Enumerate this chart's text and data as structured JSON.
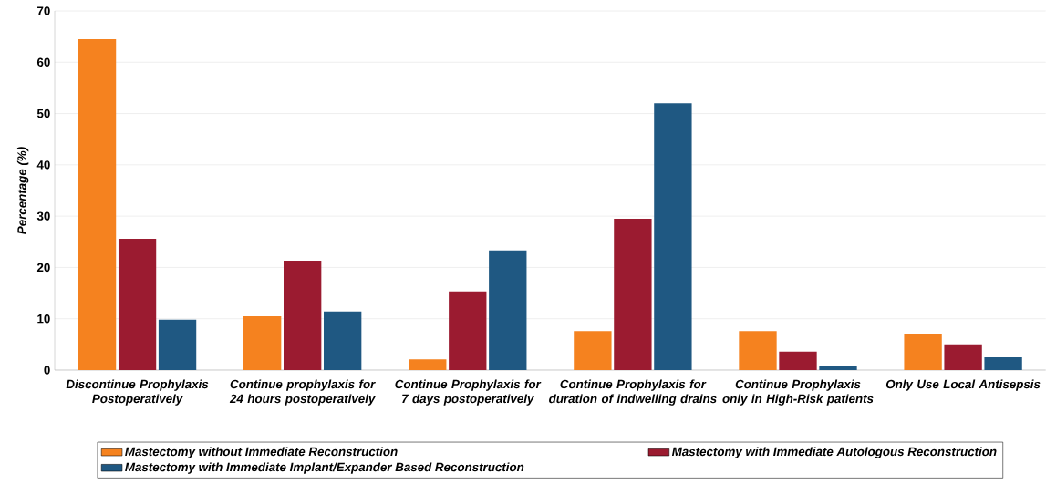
{
  "chart_data": {
    "type": "bar",
    "ylabel": "Percentage (%)",
    "categories": [
      "Discontinue Prophylaxis Postoperatively",
      "Continue prophylaxis for 24 hours postoperatively",
      "Continue Prophylaxis for 7 days postoperatively",
      "Continue Prophylaxis for duration of indwelling drains",
      "Continue Prophylaxis only in High-Risk patients",
      "Only Use Local Antisepsis"
    ],
    "series": [
      {
        "name": "Mastectomy without Immediate Reconstruction",
        "color": "#f5821f",
        "values": [
          64.5,
          10.5,
          2.1,
          7.6,
          7.6,
          7.1
        ]
      },
      {
        "name": "Mastectomy with Immediate Autologous Reconstruction",
        "color": "#9b1b30",
        "values": [
          25.6,
          21.3,
          15.3,
          29.5,
          3.6,
          5.0
        ]
      },
      {
        "name": "Mastectomy with Immediate Implant/Expander Based Reconstruction",
        "color": "#1f5882",
        "values": [
          9.8,
          11.4,
          23.3,
          52.0,
          0.9,
          2.5
        ]
      }
    ],
    "ylim": [
      0,
      70
    ],
    "yticks": [
      0,
      10,
      20,
      30,
      40,
      50,
      60,
      70
    ],
    "grid": "y",
    "legend": "bottom"
  }
}
